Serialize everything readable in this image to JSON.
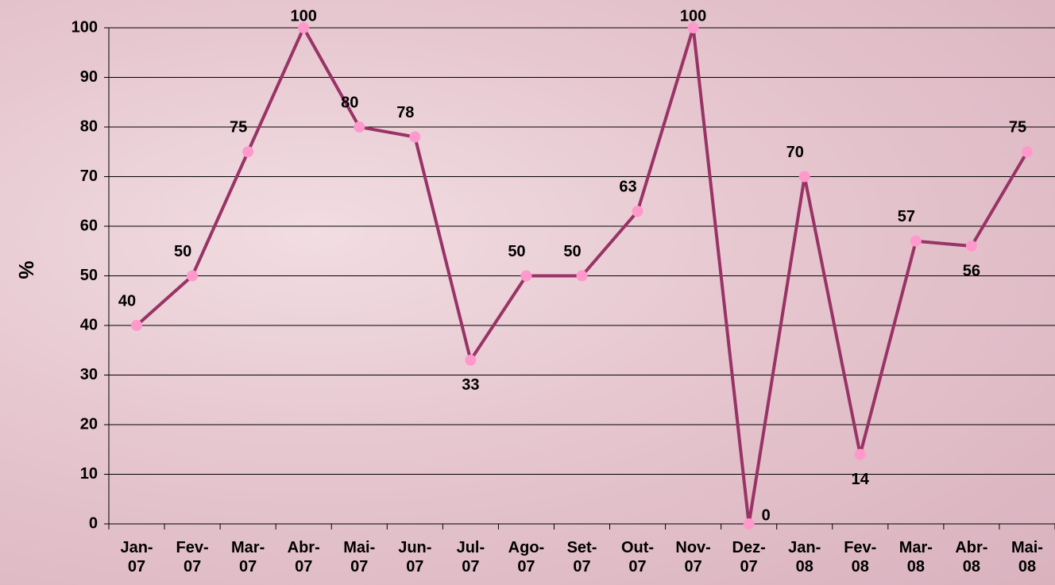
{
  "chart_data": {
    "type": "line",
    "y_label": "%",
    "categories": [
      "Jan-07",
      "Fev-07",
      "Mar-07",
      "Abr-07",
      "Mai-07",
      "Jun-07",
      "Jul-07",
      "Ago-07",
      "Set-07",
      "Out-07",
      "Nov-07",
      "Dez-07",
      "Jan-08",
      "Fev-08",
      "Mar-08",
      "Abr-08",
      "Mai-08"
    ],
    "series": [
      {
        "color": "#993366",
        "marker_color": "#ff99cc",
        "values": [
          40,
          50,
          75,
          100,
          80,
          78,
          33,
          50,
          50,
          63,
          100,
          0,
          70,
          14,
          57,
          56,
          75
        ]
      }
    ],
    "ylim": [
      0,
      100
    ],
    "yticks": [
      0,
      10,
      20,
      30,
      40,
      50,
      60,
      70,
      80,
      90,
      100
    ],
    "grid": true
  }
}
